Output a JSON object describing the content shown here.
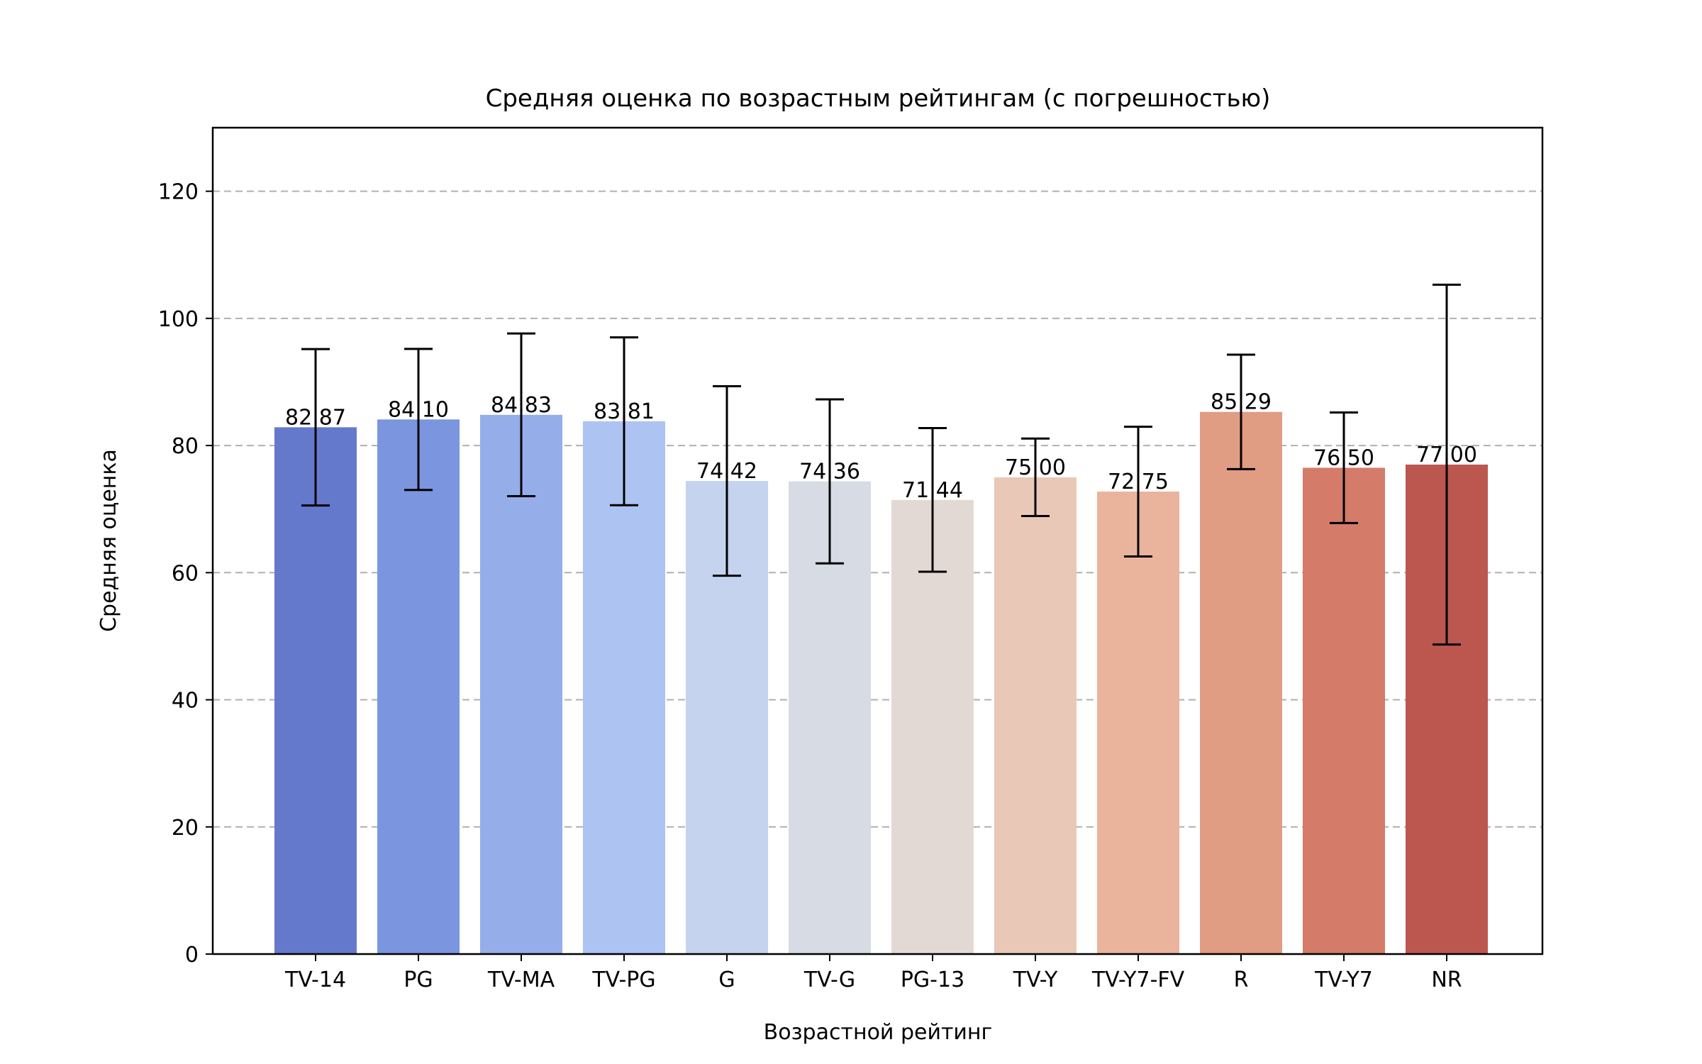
{
  "chart_data": {
    "type": "bar",
    "title": "Средняя оценка по возрастным рейтингам (с погрешностью)",
    "xlabel": "Возрастной рейтинг",
    "ylabel": "Средняя оценка",
    "ylim": [
      0,
      130
    ],
    "yticks": [
      0,
      20,
      40,
      60,
      80,
      100,
      120
    ],
    "ytick_labels": [
      "0",
      "20",
      "40",
      "60",
      "80",
      "100",
      "120"
    ],
    "grid": "y-dashed",
    "categories": [
      "TV-14",
      "PG",
      "TV-MA",
      "TV-PG",
      "G",
      "TV-G",
      "PG-13",
      "TV-Y",
      "TV-Y7-FV",
      "R",
      "TV-Y7",
      "NR"
    ],
    "values": [
      82.87,
      84.1,
      84.83,
      83.81,
      74.42,
      74.36,
      71.44,
      75.0,
      72.75,
      85.29,
      76.5,
      77.0
    ],
    "value_labels": [
      "82.87",
      "84.10",
      "84.83",
      "83.81",
      "74.42",
      "74.36",
      "71.44",
      "75.00",
      "72.75",
      "85.29",
      "76.50",
      "77.00"
    ],
    "errors": [
      12.3,
      11.1,
      12.8,
      13.2,
      14.9,
      12.9,
      11.3,
      6.1,
      10.2,
      9.0,
      8.7,
      28.3
    ],
    "colors": [
      "#6579cc",
      "#7b95de",
      "#95aeea",
      "#adc3f2",
      "#c5d3ef",
      "#d6dbe4",
      "#e3d9d4",
      "#e9c8b8",
      "#eab39c",
      "#e19c84",
      "#d47b6a",
      "#bc5750"
    ]
  }
}
